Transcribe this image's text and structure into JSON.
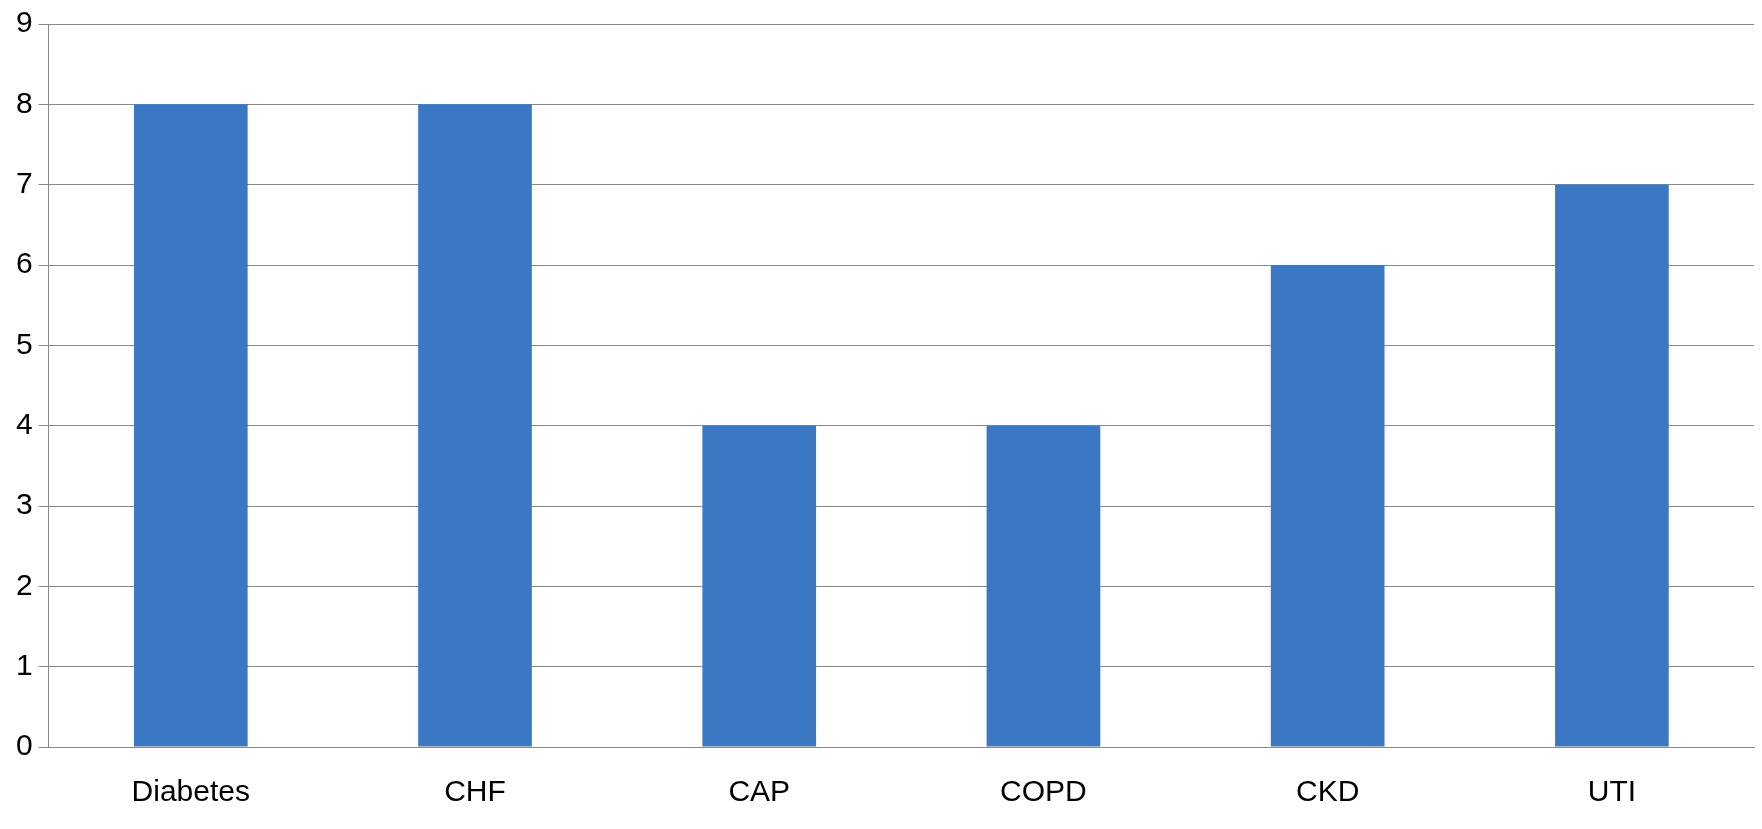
{
  "chart_data": {
    "type": "bar",
    "categories": [
      "Diabetes",
      "CHF",
      "CAP",
      "COPD",
      "CKD",
      "UTI"
    ],
    "values": [
      8,
      8,
      4,
      4,
      6,
      7
    ],
    "color": "#3a78c4",
    "ylim": [
      0,
      9
    ],
    "yticks": [
      0,
      1,
      2,
      3,
      4,
      5,
      6,
      7,
      8,
      9
    ],
    "grid": "y",
    "legend": false
  }
}
